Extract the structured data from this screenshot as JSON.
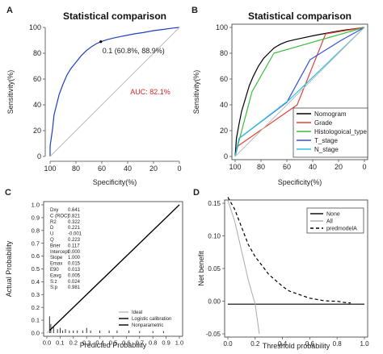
{
  "chart_data": [
    {
      "panel_label": "A",
      "type": "line",
      "title": "Statistical comparison",
      "xlabel": "Specificity(%)",
      "ylabel": "Sensitivity(%)",
      "xlim": [
        100,
        0
      ],
      "ylim": [
        0,
        100
      ],
      "xticks": [
        "100",
        "80",
        "60",
        "40",
        "20",
        "0"
      ],
      "yticks": [
        "0",
        "20",
        "40",
        "60",
        "80",
        "100"
      ],
      "series": [
        {
          "color": "#1f3fbf",
          "points": [
            [
              100,
              0
            ],
            [
              100,
              8
            ],
            [
              99,
              15
            ],
            [
              98,
              22
            ],
            [
              97,
              32
            ],
            [
              95,
              40
            ],
            [
              93,
              48
            ],
            [
              90,
              56
            ],
            [
              87,
              63
            ],
            [
              84,
              68
            ],
            [
              80,
              73
            ],
            [
              76,
              78
            ],
            [
              72,
              82
            ],
            [
              68,
              85
            ],
            [
              64,
              87.5
            ],
            [
              60.8,
              88.9
            ],
            [
              56,
              90.5
            ],
            [
              50,
              92
            ],
            [
              45,
              93
            ],
            [
              40,
              94
            ],
            [
              35,
              95
            ],
            [
              28,
              96
            ],
            [
              20,
              97.5
            ],
            [
              12,
              98.5
            ],
            [
              5,
              99.5
            ],
            [
              0,
              100
            ]
          ]
        },
        {
          "color": "#bbbbbb",
          "points": [
            [
              100,
              0
            ],
            [
              0,
              100
            ]
          ]
        }
      ],
      "annotations": [
        {
          "text": "0.1 (60.8%, 88.9%)",
          "x": 60.8,
          "y": 88.9,
          "color": "#222222"
        },
        {
          "text": "AUC: 82.1%",
          "x": 38,
          "y": 48,
          "color": "#e02020"
        }
      ]
    },
    {
      "panel_label": "B",
      "type": "line",
      "title": "Statistical comparison",
      "xlabel": "Specificity(%)",
      "ylabel": "Sensitivity(%)",
      "xlim": [
        100,
        0
      ],
      "ylim": [
        0,
        100
      ],
      "xticks": [
        "100",
        "80",
        "60",
        "40",
        "20",
        "0"
      ],
      "yticks": [
        "0",
        "20",
        "40",
        "60",
        "80",
        "100"
      ],
      "legend_position": "bottom-right",
      "series": [
        {
          "name": "Nomogram",
          "color": "#000000",
          "points": [
            [
              100,
              0
            ],
            [
              99,
              14
            ],
            [
              97,
              25
            ],
            [
              95,
              35
            ],
            [
              92,
              45
            ],
            [
              89,
              55
            ],
            [
              86,
              62
            ],
            [
              82,
              70
            ],
            [
              78,
              76
            ],
            [
              74,
              80
            ],
            [
              70,
              84
            ],
            [
              65,
              87
            ],
            [
              60,
              89
            ],
            [
              54,
              90.5
            ],
            [
              47,
              92
            ],
            [
              40,
              93.5
            ],
            [
              32,
              95
            ],
            [
              24,
              96.5
            ],
            [
              15,
              98
            ],
            [
              7,
              99
            ],
            [
              0,
              100
            ]
          ]
        },
        {
          "name": "Grade",
          "color": "#e0403a",
          "points": [
            [
              100,
              0
            ],
            [
              98,
              8
            ],
            [
              52,
              40
            ],
            [
              30,
              95
            ],
            [
              0,
              100
            ]
          ]
        },
        {
          "name": "Histologoical_type",
          "color": "#3bbf3b",
          "points": [
            [
              100,
              0
            ],
            [
              97,
              12
            ],
            [
              87,
              50
            ],
            [
              70,
              80
            ],
            [
              0,
              100
            ]
          ]
        },
        {
          "name": "T_stage",
          "color": "#3050d8",
          "points": [
            [
              100,
              0
            ],
            [
              97,
              14
            ],
            [
              60,
              42
            ],
            [
              42,
              75
            ],
            [
              18,
              90
            ],
            [
              0,
              100
            ]
          ]
        },
        {
          "name": "N_stage",
          "color": "#30c0e0",
          "points": [
            [
              100,
              0
            ],
            [
              97,
              14
            ],
            [
              58,
              44
            ],
            [
              0,
              100
            ]
          ]
        },
        {
          "color": "#bbbbbb",
          "points": [
            [
              100,
              0
            ],
            [
              0,
              100
            ]
          ]
        }
      ]
    },
    {
      "panel_label": "C",
      "type": "line",
      "xlabel": "Predicted Probability",
      "ylabel": "Actual Probability",
      "xlim": [
        0,
        1
      ],
      "ylim": [
        0,
        1
      ],
      "xticks": [
        "0.0",
        "0.1",
        "0.2",
        "0.3",
        "0.4",
        "0.5",
        "0.6",
        "0.7",
        "0.8",
        "0.9",
        "1.0"
      ],
      "yticks": [
        "0.0",
        "0.1",
        "0.2",
        "0.3",
        "0.4",
        "0.5",
        "0.6",
        "0.7",
        "0.8",
        "0.9",
        "1.0"
      ],
      "legend_position": "bottom-right",
      "series": [
        {
          "name": "Ideal",
          "color": "#bbbbbb",
          "points": [
            [
              0,
              0
            ],
            [
              1,
              1
            ]
          ]
        },
        {
          "name": "Logistic calibration",
          "color": "#000000",
          "points": [
            [
              0.02,
              0.02
            ],
            [
              1,
              1
            ]
          ]
        },
        {
          "name": "Nonparametric",
          "color": "#000000",
          "points": [
            [
              0.02,
              0.02
            ],
            [
              0.3,
              0.3
            ],
            [
              0.6,
              0.6
            ],
            [
              1,
              1
            ]
          ]
        }
      ],
      "stats": [
        [
          "Dxy",
          "0.641"
        ],
        [
          "C (ROC)",
          "0.821"
        ],
        [
          "R2",
          "0.322"
        ],
        [
          "D",
          "0.221"
        ],
        [
          "U",
          "-0.001"
        ],
        [
          "Q",
          "0.223"
        ],
        [
          "Brier",
          "0.117"
        ],
        [
          "Intercept",
          "0.000"
        ],
        [
          "Slope",
          "1.000"
        ],
        [
          "Emax",
          "0.015"
        ],
        [
          "E90",
          "0.013"
        ],
        [
          "Eavg",
          "0.005"
        ],
        [
          "S:z",
          "0.024"
        ],
        [
          "S:p",
          "0.981"
        ]
      ],
      "rug": [
        [
          0.02,
          0.13
        ],
        [
          0.03,
          0.07
        ],
        [
          0.05,
          0.05
        ],
        [
          0.08,
          0.03
        ],
        [
          0.1,
          0.04
        ],
        [
          0.12,
          0.02
        ],
        [
          0.14,
          0.03
        ],
        [
          0.17,
          0.02
        ],
        [
          0.2,
          0.02
        ],
        [
          0.23,
          0.02
        ],
        [
          0.27,
          0.02
        ],
        [
          0.3,
          0.04
        ],
        [
          0.33,
          0.02
        ],
        [
          0.4,
          0.02
        ],
        [
          0.47,
          0.02
        ],
        [
          0.53,
          0.02
        ],
        [
          0.62,
          0.02
        ],
        [
          0.7,
          0.015
        ],
        [
          0.8,
          0.015
        ],
        [
          0.88,
          0.015
        ]
      ]
    },
    {
      "panel_label": "D",
      "type": "line",
      "xlabel": "Threshold probability",
      "ylabel": "Net benefit",
      "xlim": [
        0,
        1
      ],
      "ylim": [
        -0.05,
        0.17
      ],
      "xticks": [
        "0.0",
        "0.2",
        "0.4",
        "0.6",
        "0.8",
        "1.0"
      ],
      "yticks": [
        "-0.05",
        "0.00",
        "0.05",
        "0.10",
        "0.15"
      ],
      "legend_position": "top-right",
      "series": [
        {
          "name": "None",
          "color": "#000000",
          "dash": "",
          "points": [
            [
              0,
              0
            ],
            [
              1,
              0
            ]
          ]
        },
        {
          "name": "All",
          "color": "#aaaaaa",
          "dash": "",
          "points": [
            [
              0,
              0.175
            ],
            [
              0.05,
              0.14
            ],
            [
              0.1,
              0.09
            ],
            [
              0.15,
              0.04
            ],
            [
              0.2,
              0.0
            ],
            [
              0.23,
              -0.05
            ]
          ]
        },
        {
          "name": "predmodelA",
          "color": "#000000",
          "dash": "4,3",
          "points": [
            [
              0,
              0.18
            ],
            [
              0.05,
              0.16
            ],
            [
              0.1,
              0.13
            ],
            [
              0.15,
              0.1
            ],
            [
              0.2,
              0.08
            ],
            [
              0.25,
              0.065
            ],
            [
              0.3,
              0.05
            ],
            [
              0.35,
              0.04
            ],
            [
              0.4,
              0.03
            ],
            [
              0.45,
              0.022
            ],
            [
              0.5,
              0.018
            ],
            [
              0.55,
              0.014
            ],
            [
              0.6,
              0.01
            ],
            [
              0.65,
              0.008
            ],
            [
              0.7,
              0.006
            ],
            [
              0.75,
              0.005
            ],
            [
              0.8,
              0.005
            ],
            [
              0.85,
              0.003
            ],
            [
              0.9,
              0.002
            ]
          ]
        }
      ]
    }
  ]
}
